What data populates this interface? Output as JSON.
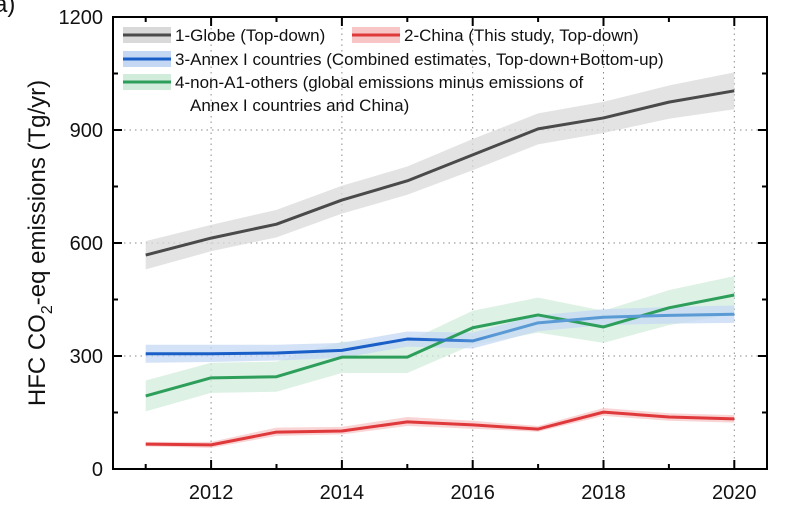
{
  "panel_label": "a)",
  "chart_data": {
    "type": "line",
    "title": "",
    "xlabel": "",
    "ylabel": "HFC CO2-eq emissions (Tg/yr)",
    "ylabel_parts": {
      "prefix": "HFC CO",
      "subscript": "2",
      "suffix": "-eq emissions (Tg/yr)"
    },
    "xlim": [
      2010.5,
      2020.5
    ],
    "ylim": [
      0,
      1200
    ],
    "x_ticks": [
      2012,
      2014,
      2016,
      2018,
      2020
    ],
    "x_minor_ticks": [
      2011,
      2013,
      2015,
      2017,
      2019
    ],
    "y_ticks": [
      0,
      300,
      600,
      900,
      1200
    ],
    "y_minor_ticks": [
      150,
      450,
      750,
      1050
    ],
    "grid": true,
    "grid_style": "dotted",
    "legend_position": "top-left",
    "x": [
      2011,
      2012,
      2013,
      2014,
      2015,
      2016,
      2017,
      2018,
      2019,
      2020
    ],
    "series": [
      {
        "name": "1-Globe (Top-down)",
        "line_color": "#4a4a4a",
        "band_color": "#d9d9d9",
        "values": [
          568,
          613,
          650,
          714,
          765,
          834,
          903,
          932,
          974,
          1004
        ],
        "lower": [
          530,
          578,
          615,
          678,
          728,
          793,
          862,
          892,
          930,
          955
        ],
        "upper": [
          605,
          648,
          688,
          752,
          803,
          876,
          944,
          975,
          1018,
          1053
        ]
      },
      {
        "name": "2-China (This study, Top-down)",
        "line_color": "#e0393c",
        "band_color": "#f7c5c6",
        "values": [
          66,
          64,
          98,
          101,
          125,
          117,
          106,
          151,
          138,
          133
        ],
        "lower": [
          60,
          56,
          88,
          92,
          114,
          107,
          99,
          141,
          128,
          123
        ],
        "upper": [
          72,
          72,
          110,
          112,
          138,
          128,
          114,
          162,
          148,
          143
        ]
      },
      {
        "name": "3-Annex I countries (Combined estimates, Top-down+Bottom-up)",
        "line_color": "#1a5fc8",
        "line_color_end": "#5b9bd5",
        "band_color": "#c4d8f3",
        "values": [
          306,
          306,
          308,
          315,
          345,
          340,
          388,
          403,
          408,
          411
        ],
        "lower": [
          282,
          284,
          288,
          295,
          325,
          320,
          366,
          382,
          386,
          388
        ],
        "upper": [
          330,
          330,
          330,
          335,
          365,
          362,
          408,
          424,
          430,
          434
        ]
      },
      {
        "name": "4-non-A1-others (global emissions minus emissions of Annex I countries and China)",
        "legend_lines": [
          "4-non-A1-others (global emissions minus emissions of",
          "Annex I countries and China)"
        ],
        "line_color": "#2e9e5b",
        "band_color": "#d2ecdc",
        "values": [
          194,
          242,
          245,
          297,
          297,
          375,
          409,
          377,
          428,
          462
        ],
        "lower": [
          153,
          202,
          205,
          255,
          255,
          330,
          362,
          335,
          382,
          412
        ],
        "upper": [
          235,
          282,
          285,
          338,
          338,
          420,
          455,
          420,
          475,
          512
        ]
      }
    ]
  }
}
